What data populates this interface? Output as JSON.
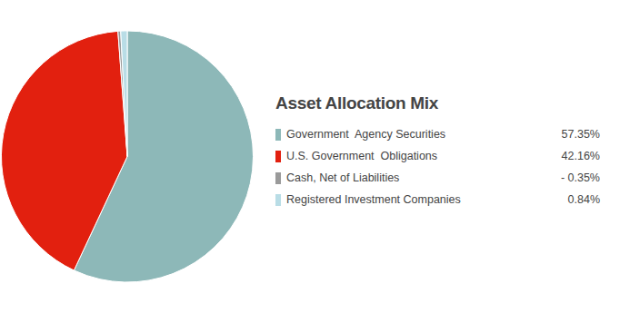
{
  "chart_data": {
    "type": "pie",
    "title": "Asset Allocation Mix",
    "categories": [
      "Government  Agency Securities",
      "U.S. Government  Obligations",
      "Cash, Net of Liabilities",
      "Registered Investment Companies"
    ],
    "values": [
      57.35,
      42.16,
      -0.35,
      0.84
    ],
    "value_labels": [
      "57.35%",
      "42.16%",
      "- 0.35%",
      "0.84%"
    ],
    "colors": [
      "#8db8b8",
      "#e2200f",
      "#9a9a9a",
      "#b9dde6"
    ],
    "legend": "right"
  }
}
